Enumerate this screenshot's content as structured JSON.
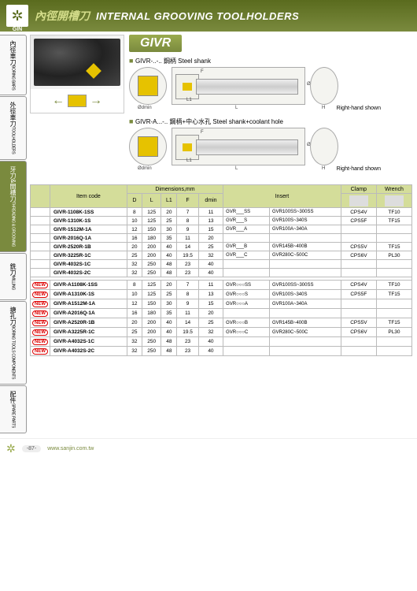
{
  "brand": "SHAN GIN",
  "header": {
    "title_cn": "內徑開槽刀",
    "title_en": "INTERNAL GROOVING TOOLHOLDERS"
  },
  "tabs": [
    {
      "cn": "內徑車刀",
      "en": "BORING BARS"
    },
    {
      "cn": "外徑車刀",
      "en": "TOOLHOLDERS"
    },
    {
      "cn": "牙刀&開槽刀",
      "en": "THREADING & GROOVING",
      "active": true
    },
    {
      "cn": "銑刀",
      "en": "MILLING"
    },
    {
      "cn": "搪孔刀",
      "en": "BORING TOOLS COMPONENTS"
    },
    {
      "cn": "配件",
      "en": "SPARE PARTS"
    }
  ],
  "badge": "GIVR",
  "variants": [
    {
      "label": "GIVR-..-..  鋼柄 Steel shank",
      "rh": "Right-hand shown"
    },
    {
      "label": "GIVR-A...-..  鋼柄+中心水孔 Steel shank+coolant hole",
      "rh": "Right-hand shown"
    }
  ],
  "dia_labels": {
    "dmin": "Ødmin",
    "F": "F",
    "L1": "L1",
    "L": "L",
    "D": "ØD",
    "H": "H"
  },
  "table": {
    "headers": {
      "item": "Item code",
      "dim": "Dimensions,mm",
      "insert": "Insert",
      "clamp": "Clamp",
      "wrench": "Wrench",
      "D": "D",
      "L": "L",
      "L1": "L1",
      "F": "F",
      "dmin": "dmin"
    },
    "rows1": [
      {
        "item": "GIVR-1108K-1SS",
        "D": 8,
        "L": 125,
        "L1": 20,
        "F": 7,
        "dmin": 11,
        "ins1": "GVR___SS",
        "ins2": "GVR100SS~300SS",
        "clamp": "CPS4V",
        "wrench": "TF10"
      },
      {
        "item": "GIVR-1310K-1S",
        "D": 10,
        "L": 125,
        "L1": 25,
        "F": 8,
        "dmin": 13,
        "ins1": "GVR___S",
        "ins2": "GVR100S~340S",
        "clamp": "CPS5F",
        "wrench": "TF15"
      },
      {
        "item": "GIVR-1512M-1A",
        "D": 12,
        "L": 150,
        "L1": 30,
        "F": 9,
        "dmin": 15,
        "ins1": "GVR___A",
        "ins2": "GVR100A~340A",
        "clamp": "",
        "wrench": ""
      },
      {
        "item": "GIVR-2016Q-1A",
        "D": 16,
        "L": 180,
        "L1": 35,
        "F": 11,
        "dmin": 20,
        "ins1": "",
        "ins2": "",
        "clamp": "",
        "wrench": ""
      },
      {
        "item": "GIVR-2520R-1B",
        "D": 20,
        "L": 200,
        "L1": 40,
        "F": 14,
        "dmin": 25,
        "ins1": "GVR___B",
        "ins2": "GVR145B~400B",
        "clamp": "CPS5V",
        "wrench": "TF15"
      },
      {
        "item": "GIVR-3225R-1C",
        "D": 25,
        "L": 200,
        "L1": 40,
        "F": 19.5,
        "dmin": 32,
        "ins1": "GVR___C",
        "ins2": "GVR280C~500C",
        "clamp": "CPS6V",
        "wrench": "PL30"
      },
      {
        "item": "GIVR-4032S-1C",
        "D": 32,
        "L": 250,
        "L1": 48,
        "F": 23,
        "dmin": 40,
        "ins1": "",
        "ins2": "",
        "clamp": "",
        "wrench": ""
      },
      {
        "item": "GIVR-4032S-2C",
        "D": 32,
        "L": 250,
        "L1": 48,
        "F": 23,
        "dmin": 40,
        "ins1": "",
        "ins2": "",
        "clamp": "",
        "wrench": ""
      }
    ],
    "rows2": [
      {
        "new": true,
        "item": "GIVR-A1108K-1SS",
        "D": 8,
        "L": 125,
        "L1": 20,
        "F": 7,
        "dmin": 11,
        "ins1": "GVR○○○SS",
        "ins2": "GVR100SS~300SS",
        "clamp": "CPS4V",
        "wrench": "TF10"
      },
      {
        "new": true,
        "item": "GIVR-A1310K-1S",
        "D": 10,
        "L": 125,
        "L1": 25,
        "F": 8,
        "dmin": 13,
        "ins1": "GVR○○○S",
        "ins2": "GVR100S~340S",
        "clamp": "CPS5F",
        "wrench": "TF15"
      },
      {
        "new": true,
        "item": "GIVR-A1512M-1A",
        "D": 12,
        "L": 150,
        "L1": 30,
        "F": 9,
        "dmin": 15,
        "ins1": "GVR○○○A",
        "ins2": "GVR100A~340A",
        "clamp": "",
        "wrench": ""
      },
      {
        "new": true,
        "item": "GIVR-A2016Q-1A",
        "D": 16,
        "L": 180,
        "L1": 35,
        "F": 11,
        "dmin": 20,
        "ins1": "",
        "ins2": "",
        "clamp": "",
        "wrench": ""
      },
      {
        "new": true,
        "item": "GIVR-A2520R-1B",
        "D": 20,
        "L": 200,
        "L1": 40,
        "F": 14,
        "dmin": 25,
        "ins1": "GVR○○○B",
        "ins2": "GVR145B~400B",
        "clamp": "CPS5V",
        "wrench": "TF15"
      },
      {
        "new": true,
        "item": "GIVR-A3225R-1C",
        "D": 25,
        "L": 200,
        "L1": 40,
        "F": 19.5,
        "dmin": 32,
        "ins1": "GVR○○○C",
        "ins2": "GVR280C~500C",
        "clamp": "CPS6V",
        "wrench": "PL30"
      },
      {
        "new": true,
        "item": "GIVR-A4032S-1C",
        "D": 32,
        "L": 250,
        "L1": 48,
        "F": 23,
        "dmin": 40,
        "ins1": "",
        "ins2": "",
        "clamp": "",
        "wrench": ""
      },
      {
        "new": true,
        "item": "GIVR-A4032S-2C",
        "D": 32,
        "L": 250,
        "L1": 48,
        "F": 23,
        "dmin": 40,
        "ins1": "",
        "ins2": "",
        "clamp": "",
        "wrench": ""
      }
    ]
  },
  "new_label": "NEW",
  "footer": {
    "page": "-87-",
    "url": "www.sanjin.com.tw"
  },
  "colors": {
    "accent": "#7a8a3e",
    "table_header": "#d4dd9a",
    "insert_chip": "#e6c200",
    "new": "#d00"
  }
}
